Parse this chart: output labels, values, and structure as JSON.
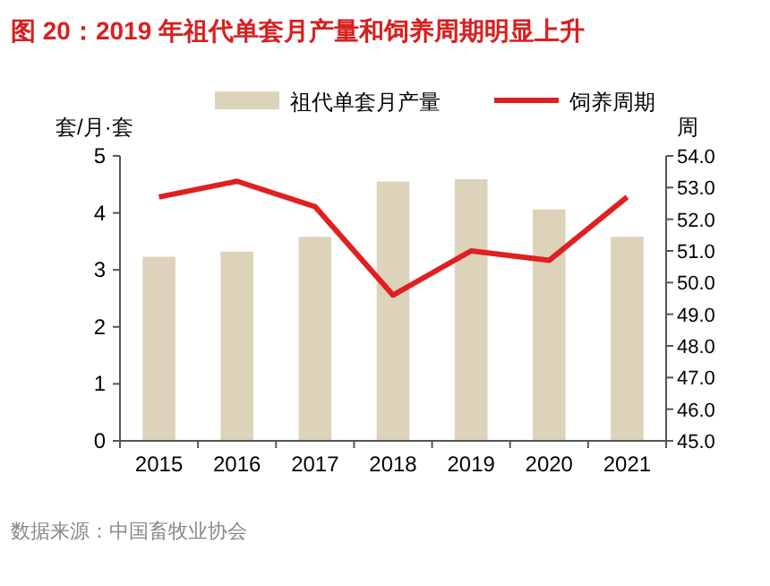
{
  "chart_data": {
    "type": "bar",
    "title": "图 20：2019 年祖代单套月产量和饲养周期明显上升",
    "categories": [
      "2015",
      "2016",
      "2017",
      "2018",
      "2019",
      "2020",
      "2021"
    ],
    "series": [
      {
        "name": "祖代单套月产量",
        "color": "#ddd3bb",
        "values": [
          3.23,
          3.32,
          3.58,
          4.55,
          4.59,
          4.06,
          3.58
        ]
      },
      {
        "name": "饲养周期",
        "type": "line",
        "axis": "y2",
        "color": "#e02020",
        "values": [
          52.7,
          53.2,
          52.4,
          49.6,
          51.0,
          50.7,
          52.7
        ]
      }
    ],
    "ylabel": "套/月·套",
    "y2label": "周",
    "ylim": [
      0,
      5
    ],
    "yticks": [
      0,
      1,
      2,
      3,
      4,
      5
    ],
    "y2lim": [
      45,
      54
    ],
    "y2ticks": [
      {
        "value": 45,
        "label": "45.0"
      },
      {
        "value": 46,
        "label": "46.0"
      },
      {
        "value": 47,
        "label": "47.0"
      },
      {
        "value": 48,
        "label": "48.0"
      },
      {
        "value": 49,
        "label": "49.0"
      },
      {
        "value": 50,
        "label": "50.0"
      },
      {
        "value": 51,
        "label": "51.0"
      },
      {
        "value": 52,
        "label": "52.0"
      },
      {
        "value": 53,
        "label": "53.0"
      },
      {
        "value": 54,
        "label": "54.0"
      }
    ],
    "legend": "top",
    "grid": false,
    "line_style": "solid",
    "marker": "none",
    "annotations": [
      "数据来源：中国畜牧业协会"
    ]
  }
}
